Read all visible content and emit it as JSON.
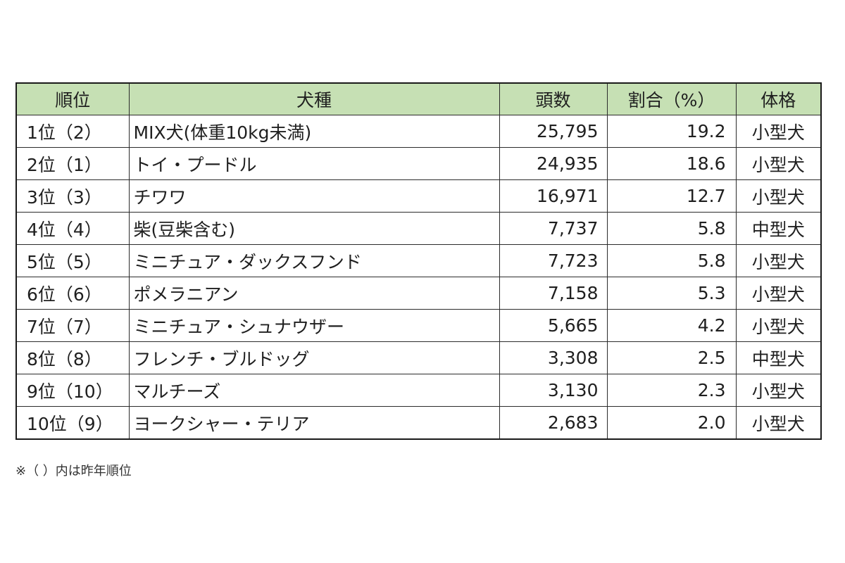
{
  "table": {
    "headers": [
      "順位",
      "犬種",
      "頭数",
      "割合（%）",
      "体格"
    ],
    "rows": [
      {
        "rank": "1位（2）",
        "breed": "MIX犬(体重10kg未満)",
        "count": "25,795",
        "share": "19.2",
        "size": "小型犬"
      },
      {
        "rank": "2位（1）",
        "breed": "トイ・プードル",
        "count": "24,935",
        "share": "18.6",
        "size": "小型犬"
      },
      {
        "rank": "3位（3）",
        "breed": "チワワ",
        "count": "16,971",
        "share": "12.7",
        "size": "小型犬"
      },
      {
        "rank": "4位（4）",
        "breed": "柴(豆柴含む)",
        "count": "7,737",
        "share": "5.8",
        "size": "中型犬"
      },
      {
        "rank": "5位（5）",
        "breed": "ミニチュア・ダックスフンド",
        "count": "7,723",
        "share": "5.8",
        "size": "小型犬"
      },
      {
        "rank": "6位（6）",
        "breed": "ポメラニアン",
        "count": "7,158",
        "share": "5.3",
        "size": "小型犬"
      },
      {
        "rank": "7位（7）",
        "breed": "ミニチュア・シュナウザー",
        "count": "5,665",
        "share": "4.2",
        "size": "小型犬"
      },
      {
        "rank": "8位（8）",
        "breed": "フレンチ・ブルドッグ",
        "count": "3,308",
        "share": "2.5",
        "size": "中型犬"
      },
      {
        "rank": "9位（10）",
        "breed": "マルチーズ",
        "count": "3,130",
        "share": "2.3",
        "size": "小型犬"
      },
      {
        "rank": "10位（9）",
        "breed": "ヨークシャー・テリア",
        "count": "2,683",
        "share": "2.0",
        "size": "小型犬"
      }
    ]
  },
  "note": "※（ ）内は昨年順位",
  "colors": {
    "header_background": "#c6e0b4",
    "border": "#2b2b2b",
    "text": "#1f1f1f"
  }
}
